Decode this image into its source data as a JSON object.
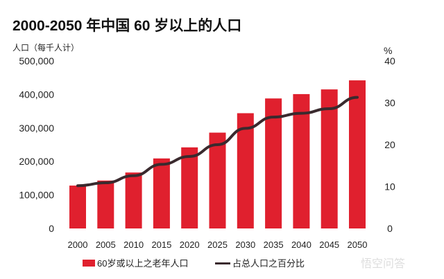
{
  "chart_data": {
    "type": "bar",
    "title": "2000-2050 年中国 60 岁以上的人口",
    "ylabel": "人口（每千人计）",
    "y2label": "%",
    "categories": [
      "2000",
      "2005",
      "2010",
      "2015",
      "2020",
      "2025",
      "2030",
      "2035",
      "2040",
      "2045",
      "2050"
    ],
    "ylim": [
      0,
      500000
    ],
    "y2lim": [
      0,
      40
    ],
    "yticks": [
      "0",
      "100,000",
      "200,000",
      "300,000",
      "400,000",
      "500,000"
    ],
    "y2ticks": [
      "0",
      "10",
      "20",
      "30",
      "40"
    ],
    "series": [
      {
        "name": "60岁或以上之老年人口",
        "type": "bar",
        "axis": "left",
        "color": "#e0202e",
        "values": [
          128000,
          143000,
          167000,
          209000,
          242000,
          286000,
          344000,
          388000,
          401000,
          415000,
          442000
        ]
      },
      {
        "name": "占总人口之百分比",
        "type": "line",
        "axis": "right",
        "color": "#3a2a2e",
        "values": [
          10.2,
          10.9,
          12.6,
          15.3,
          17.2,
          20.0,
          23.9,
          26.6,
          27.5,
          28.6,
          31.3
        ]
      }
    ],
    "grid": false,
    "legend": "bottom"
  },
  "watermark": "悟空问答"
}
